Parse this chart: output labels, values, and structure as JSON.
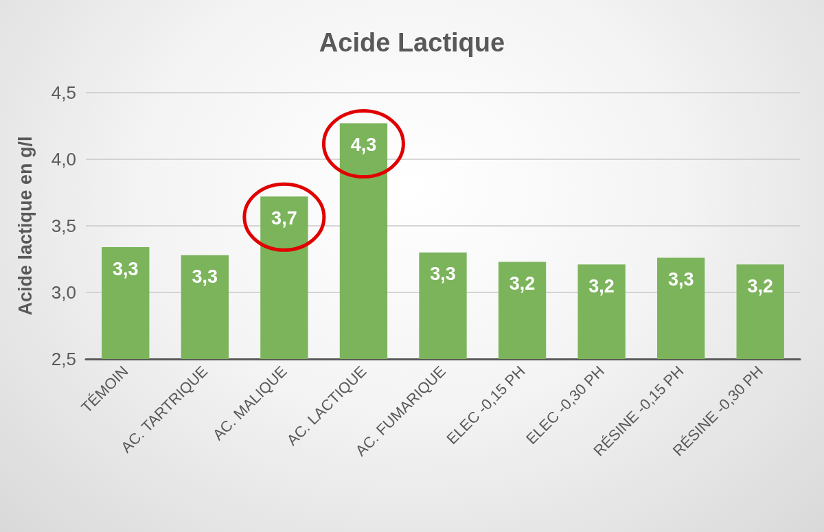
{
  "chart_data": {
    "type": "bar",
    "title": "Acide Lactique",
    "ylabel": "Acide lactique en g/l",
    "categories": [
      "TÉMOIN",
      "AC. TARTRIQUE",
      "AC. MALIQUE",
      "AC. LACTIQUE",
      "AC. FUMARIQUE",
      "ELEC -0,15 PH",
      "ELEC -0,30 PH",
      "RÉSINE -0,15 PH",
      "RÉSINE -0,30 PH"
    ],
    "values": [
      3.34,
      3.28,
      3.72,
      4.27,
      3.3,
      3.23,
      3.21,
      3.26,
      3.21
    ],
    "value_labels": [
      "3,3",
      "3,3",
      "3,7",
      "4,3",
      "3,3",
      "3,2",
      "3,2",
      "3,3",
      "3,2"
    ],
    "color": "#7cb45c",
    "ylim": [
      2.5,
      4.5
    ],
    "yticks": [
      {
        "value": 2.5,
        "label": "2,5"
      },
      {
        "value": 3.0,
        "label": "3,0"
      },
      {
        "value": 3.5,
        "label": "3,5"
      },
      {
        "value": 4.0,
        "label": "4,0"
      },
      {
        "value": 4.5,
        "label": "4,5"
      }
    ],
    "grid": "y"
  }
}
